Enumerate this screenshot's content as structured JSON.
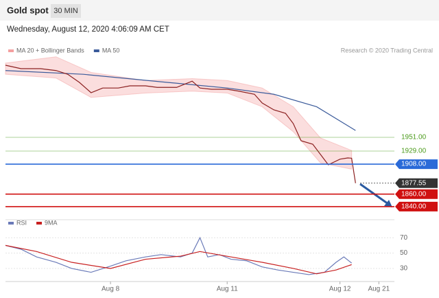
{
  "chart_data": [
    {
      "type": "line",
      "title": "Gold spot",
      "timeframe": "30 MIN",
      "subtitle": "Wednesday, August 12, 2020 4:06:09 AM CET",
      "source": "Research © 2020 Trading Central",
      "xlim": [
        0,
        100
      ],
      "xticks": [
        {
          "value": 27,
          "label": "Aug 8"
        },
        {
          "value": 57,
          "label": "Aug 11"
        },
        {
          "value": 86,
          "label": "Aug 12"
        },
        {
          "value": 96,
          "label": "Aug 21"
        }
      ],
      "ylim": [
        1830,
        2105
      ],
      "series": [
        {
          "name": "MA 20 + Bollinger Bands",
          "color": "#f4a0a0",
          "band": true,
          "x": [
            0,
            13,
            22,
            36,
            48,
            57,
            66,
            74,
            81,
            89
          ],
          "upper": [
            2070,
            2080,
            2055,
            2042,
            2045,
            2042,
            2030,
            2000,
            1950,
            1930
          ],
          "lower": [
            2052,
            2046,
            2015,
            2022,
            2025,
            2022,
            2000,
            1960,
            1910,
            1900
          ]
        },
        {
          "name": "MA 50",
          "color": "#3a5a9a",
          "x": [
            0,
            20,
            40,
            57,
            69,
            80,
            90
          ],
          "values": [
            2058,
            2052,
            2040,
            2030,
            2020,
            2000,
            1962
          ]
        },
        {
          "color": "#8b2020",
          "x": [
            0,
            4,
            6,
            9,
            13,
            16,
            19,
            22,
            25,
            29,
            32,
            36,
            39,
            44,
            48,
            50,
            53,
            57,
            60,
            64,
            66,
            69,
            72,
            74,
            76,
            79,
            81,
            83,
            86,
            88,
            89,
            90
          ],
          "values": [
            2066.5,
            2061,
            2061,
            2061,
            2058,
            2052,
            2039,
            2022.5,
            2030,
            2030,
            2033.5,
            2033.5,
            2031,
            2031,
            2041,
            2030,
            2028,
            2028,
            2025,
            2020,
            2006,
            1995,
            1989.5,
            1973,
            1945.5,
            1940,
            1923.5,
            1907,
            1916,
            1918,
            1917.5,
            1877.55
          ]
        }
      ],
      "levels": [
        {
          "value": 1951,
          "label": "1951.00",
          "color": "#4a9a1a",
          "box": false
        },
        {
          "value": 1929,
          "label": "1929.00",
          "color": "#4a9a1a",
          "box": false
        },
        {
          "value": 1908,
          "label": "1908.00",
          "color": "#2a6ad8",
          "box": true
        },
        {
          "value": 1877.55,
          "label": "1877.55",
          "color": "#333333",
          "box": true
        },
        {
          "value": 1860,
          "label": "1860.00",
          "color": "#d01010",
          "box": true
        },
        {
          "value": 1840,
          "label": "1840.00",
          "color": "#d01010",
          "box": true
        }
      ]
    },
    {
      "type": "line",
      "xlim": [
        0,
        100
      ],
      "ylim": [
        13,
        80
      ],
      "yticks": [
        30,
        50,
        70
      ],
      "series": [
        {
          "name": "RSI",
          "color": "#6a7ab8",
          "x": [
            0,
            4,
            8,
            13,
            17,
            22,
            27,
            31,
            36,
            40,
            45,
            48,
            50,
            52,
            55,
            58,
            62,
            66,
            70,
            74,
            78,
            82,
            85,
            87,
            89
          ],
          "values": [
            60,
            55,
            45,
            38,
            30,
            25,
            33,
            40,
            45,
            48,
            45,
            50,
            70,
            45,
            48,
            42,
            40,
            32,
            28,
            25,
            22,
            25,
            38,
            45,
            37
          ]
        },
        {
          "name": "9MA",
          "color": "#c82020",
          "x": [
            0,
            8,
            17,
            27,
            36,
            45,
            50,
            58,
            66,
            74,
            80,
            85,
            89
          ],
          "values": [
            60,
            52,
            38,
            30,
            42,
            46,
            52,
            45,
            38,
            30,
            23,
            28,
            35
          ]
        }
      ]
    }
  ]
}
